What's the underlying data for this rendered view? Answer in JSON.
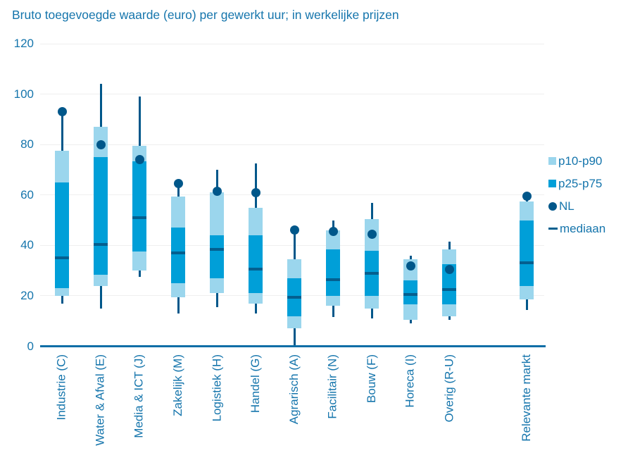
{
  "title": "Bruto toegevoegde waarde (euro) per gewerkt uur; in werkelijke prijzen",
  "colors": {
    "text_blue": "#1575ac",
    "dark_blue": "#00578a",
    "median_blue": "#045f8f",
    "axis_blue": "#0d6ea6",
    "box_mid": "#009fd8",
    "box_light": "#9bd6ed",
    "gridline": "#efefef"
  },
  "legend": {
    "items": [
      {
        "label": "p10-p90",
        "swatch": "square-light"
      },
      {
        "label": "p25-p75",
        "swatch": "square-mid"
      },
      {
        "label": "NL",
        "swatch": "dot"
      },
      {
        "label": "mediaan",
        "swatch": "dash"
      }
    ]
  },
  "chart_data": {
    "type": "boxplot",
    "title": "Bruto toegevoegde waarde (euro) per gewerkt uur; in werkelijke prijzen",
    "ylabel": "",
    "xlabel": "",
    "ylim": [
      0,
      120
    ],
    "yticks": [
      0,
      20,
      40,
      60,
      80,
      100,
      120
    ],
    "grid": "horizontal",
    "legend_position": "right",
    "categories": [
      "Industrie (C)",
      "Water & Afval (E)",
      "Media & ICT (J)",
      "Zakelijk (M)",
      "Logistiek (H)",
      "Handel (G)",
      "Agrarisch (A)",
      "Facilitair (N)",
      "Bouw (F)",
      "Horeca (I)",
      "Overig (R-U)",
      "Relevante markt"
    ],
    "series": [
      {
        "name": "Industrie (C)",
        "whisker_low": 17,
        "p10": 20,
        "p25": 23,
        "median": 35,
        "p75": 65,
        "p90": 77.5,
        "nl": 93,
        "whisker_high": 92
      },
      {
        "name": "Water & Afval (E)",
        "whisker_low": 15,
        "p10": 24,
        "p25": 28.5,
        "median": 40.5,
        "p75": 75,
        "p90": 87,
        "nl": 80,
        "whisker_high": 104
      },
      {
        "name": "Media & ICT (J)",
        "whisker_low": 27.5,
        "p10": 30,
        "p25": 37.5,
        "median": 51,
        "p75": 73.5,
        "p90": 79.5,
        "nl": 74,
        "whisker_high": 99
      },
      {
        "name": "Zakelijk (M)",
        "whisker_low": 13,
        "p10": 19.5,
        "p25": 25,
        "median": 37,
        "p75": 47,
        "p90": 59.5,
        "nl": 64.5,
        "whisker_high": 65.5
      },
      {
        "name": "Logistiek (H)",
        "whisker_low": 15.5,
        "p10": 21,
        "p25": 27,
        "median": 38.5,
        "p75": 44,
        "p90": 61,
        "nl": 61.5,
        "whisker_high": 70
      },
      {
        "name": "Handel (G)",
        "whisker_low": 13,
        "p10": 17,
        "p25": 21,
        "median": 30.5,
        "p75": 44,
        "p90": 55,
        "nl": 61,
        "whisker_high": 72.5
      },
      {
        "name": "Agrarisch (A)",
        "whisker_low": 0.5,
        "p10": 7,
        "p25": 12,
        "median": 19.5,
        "p75": 27,
        "p90": 34.5,
        "nl": 46,
        "whisker_high": 46.5
      },
      {
        "name": "Facilitair (N)",
        "whisker_low": 11.5,
        "p10": 16,
        "p25": 20,
        "median": 26.5,
        "p75": 38.5,
        "p90": 46,
        "nl": 45.5,
        "whisker_high": 50
      },
      {
        "name": "Bouw (F)",
        "whisker_low": 11,
        "p10": 15,
        "p25": 20,
        "median": 29,
        "p75": 38,
        "p90": 50.5,
        "nl": 44.5,
        "whisker_high": 57
      },
      {
        "name": "Horeca (I)",
        "whisker_low": 9,
        "p10": 10.5,
        "p25": 16.5,
        "median": 20.5,
        "p75": 26,
        "p90": 34.5,
        "nl": 32,
        "whisker_high": 36
      },
      {
        "name": "Overig (R-U)",
        "whisker_low": 10.5,
        "p10": 12,
        "p25": 16.5,
        "median": 22.5,
        "p75": 32.5,
        "p90": 38.5,
        "nl": 30.5,
        "whisker_high": 41.5
      },
      {
        "name": "Relevante markt",
        "whisker_low": 14.5,
        "p10": 18.5,
        "p25": 24,
        "median": 33,
        "p75": 50,
        "p90": 57.5,
        "nl": 59.5,
        "whisker_high": 59,
        "gap_before": true
      }
    ]
  }
}
